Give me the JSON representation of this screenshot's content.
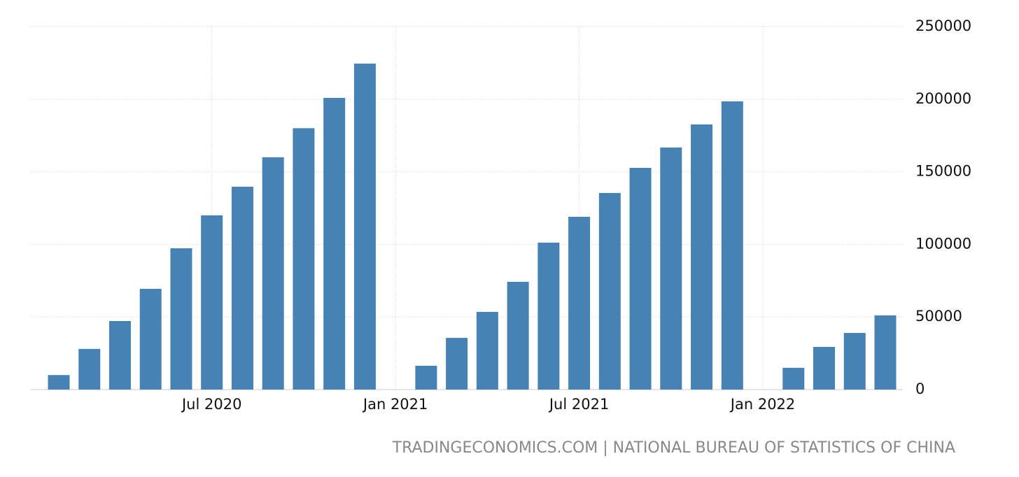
{
  "chart_data": {
    "type": "bar",
    "categories": [
      null,
      null,
      null,
      null,
      null,
      "Jul 2020",
      null,
      null,
      null,
      null,
      null,
      "Jan 2021",
      null,
      null,
      null,
      null,
      null,
      "Jul 2021",
      null,
      null,
      null,
      null,
      null,
      "Jan 2022",
      null,
      null,
      null,
      null
    ],
    "values": [
      10000,
      28000,
      47200,
      69400,
      97300,
      120000,
      139700,
      160000,
      180000,
      200900,
      224500,
      null,
      16400,
      35600,
      53500,
      74200,
      101200,
      119000,
      135400,
      152700,
      166700,
      182600,
      198500,
      null,
      15000,
      29400,
      39000,
      51100
    ],
    "color": "#4682b4",
    "ylim": [
      0,
      250000
    ],
    "yticks": [
      0,
      50000,
      100000,
      150000,
      200000,
      250000
    ],
    "grid": true,
    "source": "TRADINGECONOMICS.COM | NATIONAL BUREAU OF STATISTICS OF CHINA"
  }
}
